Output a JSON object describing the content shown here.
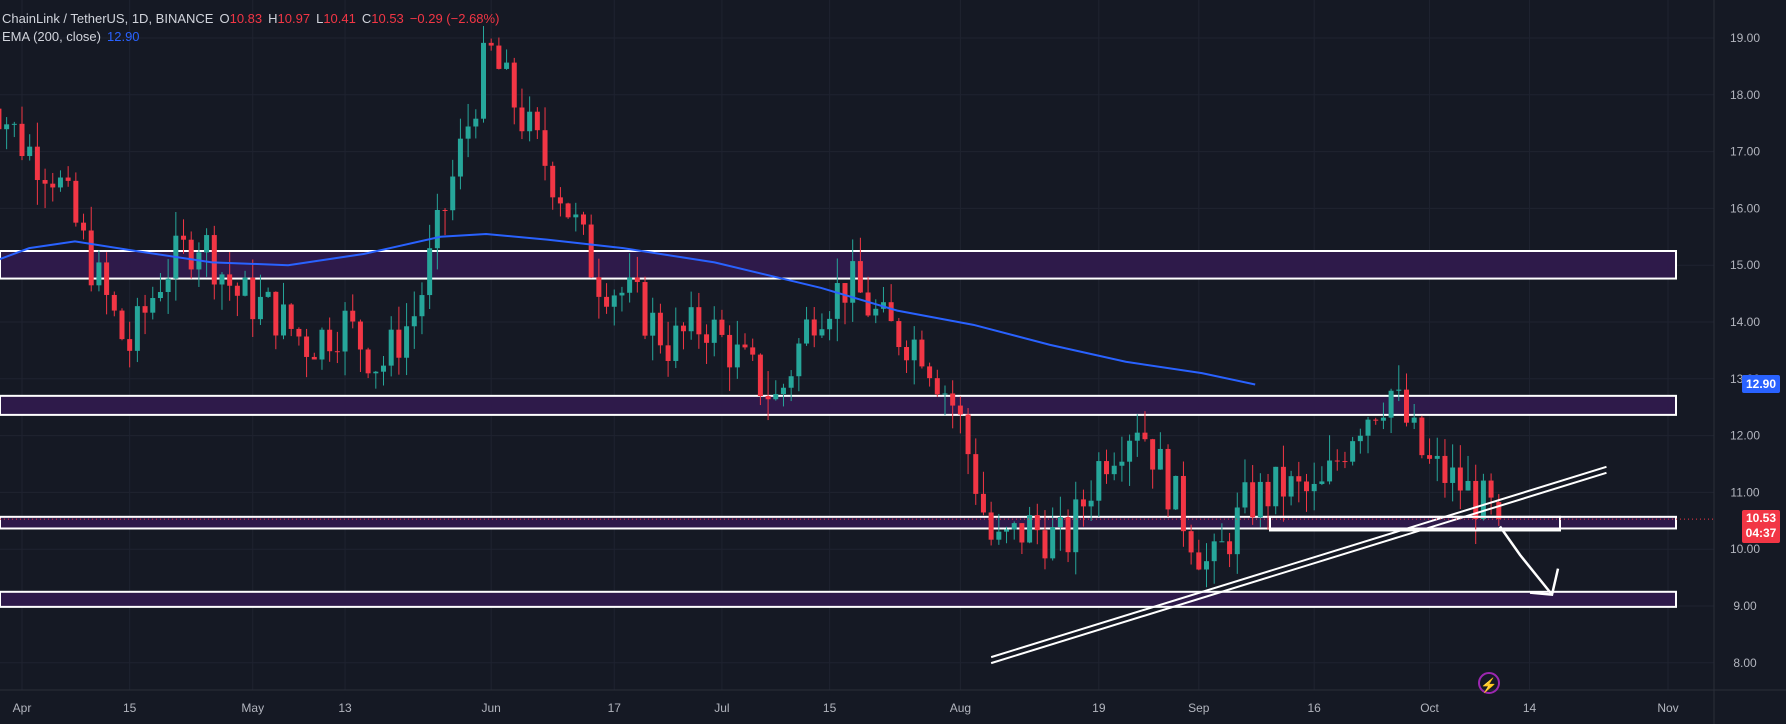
{
  "header": {
    "symbol": "ChainLink / TetherUS, 1D, BINANCE",
    "open_label": "O",
    "open": "10.83",
    "high_label": "H",
    "high": "10.97",
    "low_label": "L",
    "low": "10.41",
    "close_label": "C",
    "close": "10.53",
    "change": "−0.29 (−2.68%)",
    "indicator": "EMA (200, close)",
    "indicator_value": "12.90"
  },
  "price_scale": {
    "last_price": "10.53",
    "countdown": "04:37",
    "ema_label": "12.90"
  },
  "colors": {
    "background": "#151924",
    "up": "#26a69a",
    "down": "#f23645",
    "ema": "#2962ff",
    "zone_fill": "#2e1a4a",
    "grid": "#1f2330"
  },
  "chart_data": {
    "type": "candlestick",
    "symbol": "ChainLink / TetherUS",
    "interval": "1D",
    "exchange": "BINANCE",
    "ylim": [
      7.6,
      19.4
    ],
    "y_ticks": [
      "19.00",
      "18.00",
      "17.00",
      "16.00",
      "15.00",
      "14.00",
      "13.00",
      "12.00",
      "11.00",
      "10.00",
      "9.00",
      "8.00"
    ],
    "x_tick_labels": [
      "Apr",
      "15",
      "May",
      "13",
      "Jun",
      "17",
      "Jul",
      "15",
      "Aug",
      "19",
      "Sep",
      "16",
      "Oct",
      "14",
      "Nov"
    ],
    "x_tick_dates": [
      "2024-04-01",
      "2024-04-15",
      "2024-05-01",
      "2024-05-13",
      "2024-06-01",
      "2024-06-17",
      "2024-07-01",
      "2024-07-15",
      "2024-08-01",
      "2024-08-19",
      "2024-09-01",
      "2024-09-16",
      "2024-10-01",
      "2024-10-14",
      "2024-11-01"
    ],
    "close_path": [
      18.2,
      17.2,
      16.6,
      15.0,
      13.5,
      14.9,
      15.5,
      14.5,
      14.2,
      13.6,
      14.0,
      13.2,
      14.2,
      16.5,
      18.8,
      17.5,
      16.3,
      14.8,
      14.4,
      13.6,
      14.0,
      13.3,
      12.6,
      14.2,
      14.7,
      13.9,
      13.6,
      12.4,
      10.0,
      10.4,
      10.1,
      11.6,
      12.3,
      10.9,
      9.6,
      10.8,
      11.1,
      10.9,
      12.2,
      12.8,
      11.5,
      11.1,
      10.53
    ],
    "last": {
      "open": 10.83,
      "high": 10.97,
      "low": 10.41,
      "close": 10.53,
      "change": -0.29,
      "change_pct": -2.68
    },
    "ema200": {
      "name": "EMA (200, close)",
      "last": 12.9,
      "path": [
        [
          0,
          15.0
        ],
        [
          0.03,
          15.3
        ],
        [
          0.06,
          15.42
        ],
        [
          0.1,
          15.25
        ],
        [
          0.15,
          15.05
        ],
        [
          0.2,
          15.0
        ],
        [
          0.25,
          15.2
        ],
        [
          0.3,
          15.5
        ],
        [
          0.33,
          15.55
        ],
        [
          0.37,
          15.45
        ],
        [
          0.42,
          15.3
        ],
        [
          0.48,
          15.05
        ],
        [
          0.55,
          14.6
        ],
        [
          0.6,
          14.2
        ],
        [
          0.65,
          13.95
        ],
        [
          0.7,
          13.6
        ],
        [
          0.75,
          13.3
        ],
        [
          0.8,
          13.1
        ],
        [
          0.835,
          12.9
        ]
      ]
    },
    "zones": [
      {
        "top": 15.25,
        "bottom": 14.8
      },
      {
        "top": 12.7,
        "bottom": 12.4
      },
      {
        "top": 10.57,
        "bottom": 10.4
      },
      {
        "top": 9.25,
        "bottom": 9.02
      }
    ],
    "trendline": {
      "from": [
        "2024-08-05",
        8.1
      ],
      "to": [
        "2024-10-24",
        11.45
      ]
    },
    "projection_arrow": {
      "from": 10.4,
      "via": 9.9,
      "to": 9.2
    }
  }
}
